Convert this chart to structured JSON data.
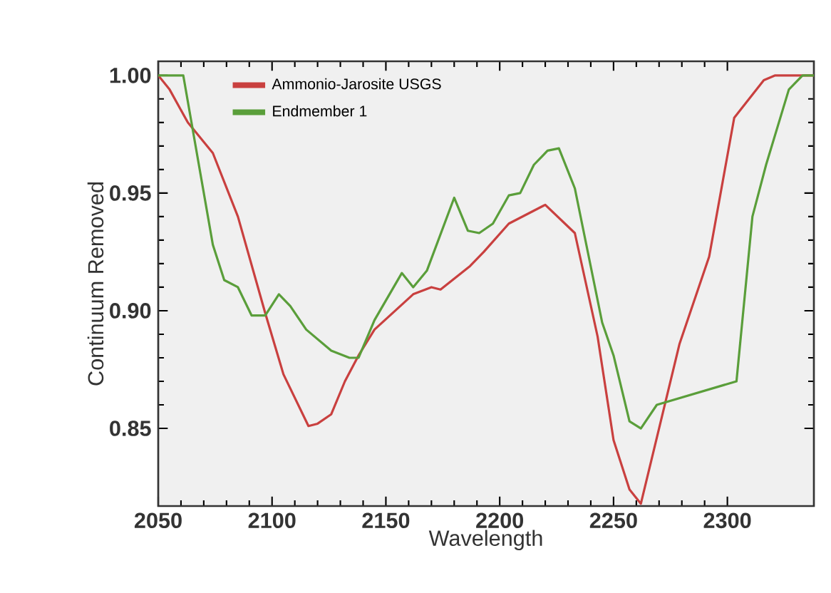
{
  "chart_data": {
    "type": "line",
    "xlabel": "Wavelength",
    "ylabel": "Continuum Removed",
    "xlim": [
      2050,
      2338
    ],
    "ylim": [
      0.817,
      1.006
    ],
    "xticks": [
      2050,
      2100,
      2150,
      2200,
      2250,
      2300
    ],
    "yticks": [
      {
        "value": 0.85,
        "label": "0.85"
      },
      {
        "value": 0.9,
        "label": "0.90"
      },
      {
        "value": 0.95,
        "label": "0.95"
      },
      {
        "value": 1.0,
        "label": "1.00"
      }
    ],
    "grid": false,
    "legend": "top left",
    "marker": "none",
    "line_style": "solid",
    "series": [
      {
        "name": "Ammonio-Jarosite USGS",
        "color": "#c9403f",
        "x": [
          2050,
          2055,
          2063,
          2074,
          2085,
          2097,
          2105,
          2116,
          2120,
          2126,
          2132,
          2138,
          2145,
          2162,
          2170,
          2174,
          2187,
          2193,
          2204,
          2220,
          2233,
          2243,
          2250,
          2257,
          2262,
          2279,
          2292,
          2303,
          2316,
          2321,
          2338
        ],
        "values": [
          1.0,
          0.994,
          0.98,
          0.967,
          0.94,
          0.899,
          0.873,
          0.851,
          0.852,
          0.856,
          0.87,
          0.881,
          0.892,
          0.907,
          0.91,
          0.909,
          0.919,
          0.925,
          0.937,
          0.945,
          0.933,
          0.889,
          0.845,
          0.824,
          0.818,
          0.886,
          0.923,
          0.982,
          0.998,
          1.0,
          1.0
        ]
      },
      {
        "name": "Endmember 1",
        "color": "#5a9e3a",
        "x": [
          2050,
          2061,
          2074,
          2079,
          2085,
          2091,
          2097,
          2103,
          2108,
          2115,
          2126,
          2134,
          2138,
          2145,
          2157,
          2162,
          2168,
          2180,
          2186,
          2191,
          2197,
          2204,
          2209,
          2215,
          2221,
          2226,
          2233,
          2245,
          2250,
          2257,
          2262,
          2269,
          2304,
          2311,
          2317,
          2327,
          2333,
          2338
        ],
        "values": [
          1.0,
          1.0,
          0.928,
          0.913,
          0.91,
          0.898,
          0.898,
          0.907,
          0.902,
          0.892,
          0.883,
          0.88,
          0.88,
          0.896,
          0.916,
          0.91,
          0.917,
          0.948,
          0.934,
          0.933,
          0.937,
          0.949,
          0.95,
          0.962,
          0.968,
          0.969,
          0.952,
          0.895,
          0.881,
          0.853,
          0.85,
          0.86,
          0.87,
          0.94,
          0.962,
          0.994,
          1.0,
          1.0
        ]
      }
    ]
  }
}
